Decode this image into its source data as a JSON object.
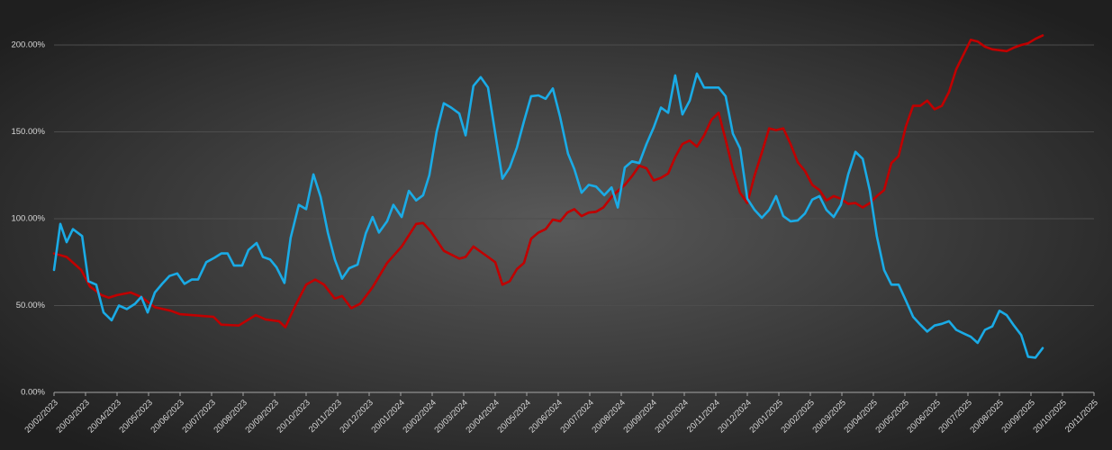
{
  "chart_data": {
    "type": "line",
    "ylim": [
      0,
      200
    ],
    "yticks": [
      {
        "value": 0,
        "label": "0.00%"
      },
      {
        "value": 50,
        "label": "50.00%"
      },
      {
        "value": 100,
        "label": "100.00%"
      },
      {
        "value": 150,
        "label": "150.00%"
      },
      {
        "value": 200,
        "label": "200.00%"
      }
    ],
    "xlim": [
      0,
      33
    ],
    "xticks": [
      {
        "value": 0,
        "label": "20/02/2023"
      },
      {
        "value": 1,
        "label": "20/03/2023"
      },
      {
        "value": 2,
        "label": "20/04/2023"
      },
      {
        "value": 3,
        "label": "20/05/2023"
      },
      {
        "value": 4,
        "label": "20/06/2023"
      },
      {
        "value": 5,
        "label": "20/07/2023"
      },
      {
        "value": 6,
        "label": "20/08/2023"
      },
      {
        "value": 7,
        "label": "20/09/2023"
      },
      {
        "value": 8,
        "label": "20/10/2023"
      },
      {
        "value": 9,
        "label": "20/11/2023"
      },
      {
        "value": 10,
        "label": "20/12/2023"
      },
      {
        "value": 11,
        "label": "20/01/2024"
      },
      {
        "value": 12,
        "label": "20/02/2024"
      },
      {
        "value": 13,
        "label": "20/03/2024"
      },
      {
        "value": 14,
        "label": "20/04/2024"
      },
      {
        "value": 15,
        "label": "20/05/2024"
      },
      {
        "value": 16,
        "label": "20/06/2024"
      },
      {
        "value": 17,
        "label": "20/07/2024"
      },
      {
        "value": 18,
        "label": "20/08/2024"
      },
      {
        "value": 19,
        "label": "20/09/2024"
      },
      {
        "value": 20,
        "label": "20/10/2024"
      },
      {
        "value": 21,
        "label": "20/11/2024"
      },
      {
        "value": 22,
        "label": "20/12/2024"
      },
      {
        "value": 23,
        "label": "20/01/2025"
      },
      {
        "value": 24,
        "label": "20/02/2025"
      },
      {
        "value": 25,
        "label": "20/03/2025"
      },
      {
        "value": 26,
        "label": "20/04/2025"
      },
      {
        "value": 27,
        "label": "20/05/2025"
      },
      {
        "value": 28,
        "label": "20/06/2025"
      },
      {
        "value": 29,
        "label": "20/07/2025"
      },
      {
        "value": 30,
        "label": "20/08/2025"
      },
      {
        "value": 31,
        "label": "20/09/2025"
      },
      {
        "value": 32,
        "label": "20/10/2025"
      },
      {
        "value": 33,
        "label": "20/11/2025"
      }
    ],
    "grid": true,
    "series": [
      {
        "color": "#1aabe6",
        "x": [
          0,
          0.2,
          0.4,
          0.6,
          0.89,
          1.09,
          1.34,
          1.57,
          1.83,
          2.06,
          2.31,
          2.57,
          2.77,
          2.97,
          3.2,
          3.43,
          3.66,
          3.91,
          4.14,
          4.37,
          4.57,
          4.83,
          5.09,
          5.31,
          5.51,
          5.71,
          5.97,
          6.17,
          6.43,
          6.63,
          6.86,
          7.06,
          7.31,
          7.51,
          7.77,
          8.0,
          8.23,
          8.46,
          8.69,
          8.91,
          9.14,
          9.37,
          9.63,
          9.89,
          10.11,
          10.31,
          10.57,
          10.77,
          11.03,
          11.26,
          11.49,
          11.71,
          11.91,
          12.14,
          12.37,
          12.6,
          12.86,
          13.06,
          13.31,
          13.54,
          13.77,
          13.97,
          14.23,
          14.46,
          14.69,
          14.91,
          15.14,
          15.37,
          15.6,
          15.83,
          16.06,
          16.31,
          16.51,
          16.74,
          16.97,
          17.2,
          17.46,
          17.69,
          17.89,
          18.11,
          18.34,
          18.57,
          18.8,
          19.03,
          19.26,
          19.49,
          19.71,
          19.94,
          20.17,
          20.4,
          20.63,
          20.86,
          21.09,
          21.31,
          21.54,
          21.77,
          22.0,
          22.23,
          22.46,
          22.69,
          22.91,
          23.14,
          23.37,
          23.6,
          23.83,
          24.06,
          24.29,
          24.51,
          24.74,
          24.97,
          25.2,
          25.43,
          25.66,
          25.89,
          26.11,
          26.34,
          26.57,
          26.8,
          27.03,
          27.26,
          27.49,
          27.71,
          27.94,
          28.17,
          28.4,
          28.63,
          28.86,
          29.09,
          29.31,
          29.54,
          29.77,
          30.0,
          30.23,
          30.46,
          30.69,
          30.91,
          31.14,
          31.37
        ],
        "values": [
          70.5,
          97,
          86.5,
          94,
          90,
          64,
          62,
          46,
          41.5,
          50,
          48,
          51,
          55,
          46,
          57.5,
          62.5,
          67,
          68.5,
          62.5,
          65,
          65,
          75,
          77.5,
          80,
          80,
          73,
          73,
          82,
          86,
          78,
          76.5,
          72,
          63,
          89,
          108,
          105.5,
          125.5,
          112.5,
          92,
          76.5,
          65.5,
          71.5,
          73.5,
          91.5,
          101,
          92,
          98.5,
          108,
          101,
          116,
          110.5,
          113.5,
          125,
          150,
          166.5,
          164,
          160.5,
          148,
          176.5,
          181.5,
          175.5,
          152.5,
          123,
          129.5,
          141,
          156,
          170.5,
          171,
          169,
          175,
          158.5,
          137.5,
          128.5,
          115,
          119.5,
          118.5,
          113.5,
          118,
          106.5,
          129.5,
          133,
          132,
          143,
          152.5,
          164,
          161,
          182.5,
          160,
          168,
          183.5,
          175.5,
          175.5,
          175.5,
          170.5,
          149,
          140.5,
          111.5,
          105,
          100.5,
          105,
          113,
          101.5,
          98.5,
          99,
          103,
          111,
          113,
          105,
          101,
          108,
          125.5,
          138.5,
          134.5,
          116,
          90,
          70.5,
          62,
          62,
          53,
          43.5,
          39,
          35,
          38.5,
          39.5,
          41,
          36,
          34,
          32,
          28.5,
          36,
          38,
          47,
          44.5,
          38.5,
          33,
          20.5,
          20,
          25.5
        ]
      },
      {
        "color": "#c00000",
        "x": [
          0,
          0.4,
          0.86,
          1.14,
          1.51,
          1.74,
          2.0,
          2.43,
          2.77,
          3.2,
          3.71,
          4.0,
          4.71,
          5.06,
          5.31,
          5.86,
          6.4,
          6.71,
          7.14,
          7.34,
          7.66,
          8.0,
          8.29,
          8.57,
          8.91,
          9.14,
          9.43,
          9.71,
          10.11,
          10.57,
          11.03,
          11.49,
          11.71,
          11.94,
          12.37,
          12.86,
          13.06,
          13.31,
          13.77,
          14.0,
          14.23,
          14.46,
          14.69,
          14.91,
          15.14,
          15.37,
          15.6,
          15.83,
          16.06,
          16.29,
          16.51,
          16.74,
          16.97,
          17.2,
          17.43,
          17.71,
          18.11,
          18.34,
          18.57,
          18.8,
          19.03,
          19.26,
          19.49,
          19.71,
          19.94,
          20.17,
          20.4,
          20.63,
          20.86,
          21.09,
          21.31,
          21.54,
          21.77,
          22.0,
          22.23,
          22.46,
          22.69,
          22.91,
          23.14,
          23.37,
          23.6,
          23.83,
          24.06,
          24.29,
          24.51,
          24.74,
          24.97,
          25.2,
          25.43,
          25.66,
          25.89,
          26.11,
          26.34,
          26.57,
          26.8,
          27.03,
          27.26,
          27.49,
          27.71,
          27.94,
          28.17,
          28.4,
          28.63,
          28.86,
          29.09,
          29.31,
          29.54,
          29.77,
          30.0,
          30.23,
          30.46,
          30.69,
          30.91,
          31.14,
          31.37
        ],
        "values": [
          80,
          78,
          70.5,
          61,
          56,
          54.5,
          56,
          57.5,
          55,
          49,
          47,
          45,
          44,
          43.5,
          39,
          38.5,
          44.5,
          42,
          41,
          37.5,
          50,
          62,
          65,
          62,
          54,
          55.5,
          48.5,
          51,
          60.5,
          74.5,
          84,
          97,
          97.5,
          93,
          81.5,
          77,
          78,
          84,
          78,
          75,
          62,
          64,
          71,
          74.5,
          88.5,
          92,
          94,
          99.5,
          98.5,
          103.5,
          105.5,
          101.5,
          103.5,
          104,
          106.5,
          113,
          119.5,
          124.5,
          130.5,
          129,
          122,
          123.5,
          126,
          135.5,
          143,
          145,
          141.5,
          148,
          157,
          161,
          145.5,
          128.5,
          115,
          109,
          125,
          138,
          152,
          151,
          152,
          143,
          132.5,
          127.5,
          119.5,
          116.5,
          110.5,
          113,
          111.5,
          108.5,
          109,
          106.5,
          109,
          113,
          116.5,
          132,
          136,
          153,
          165,
          165,
          168,
          163,
          165,
          173,
          186,
          194.5,
          203,
          202,
          199,
          197.5,
          197,
          196.5,
          198.5,
          200,
          201,
          203.5,
          205.5
        ]
      }
    ]
  }
}
